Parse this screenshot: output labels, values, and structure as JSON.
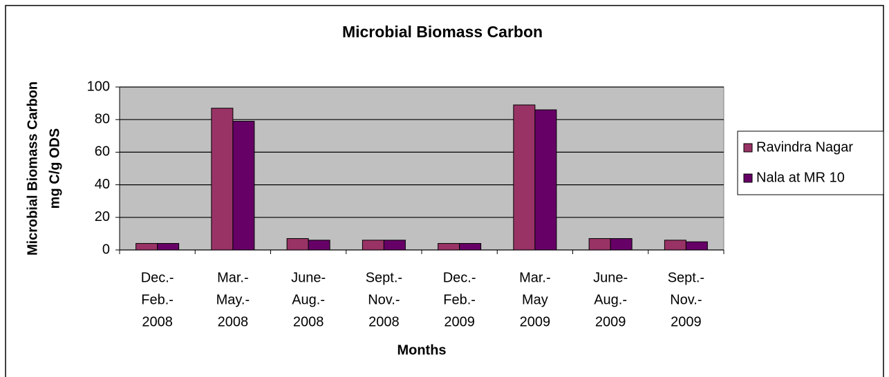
{
  "chart_data": {
    "type": "bar",
    "title": "Microbial Biomass Carbon",
    "xlabel": "Months",
    "ylabel": [
      "Microbial Biomass Carbon",
      "mg C/g ODS"
    ],
    "categories": [
      [
        "Dec.-",
        "Feb.-",
        "2008"
      ],
      [
        "Mar.-",
        "May.-",
        "2008"
      ],
      [
        "June-",
        "Aug.-",
        "2008"
      ],
      [
        "Sept.-",
        "Nov.-",
        "2008"
      ],
      [
        "Dec.-",
        "Feb.-",
        "2009"
      ],
      [
        "Mar.-",
        "May",
        "2009"
      ],
      [
        "June-",
        "Aug.-",
        "2009"
      ],
      [
        "Sept.-",
        "Nov.-",
        "2009"
      ]
    ],
    "series": [
      {
        "name": "Ravindra Nagar",
        "color": "#993366",
        "values": [
          4,
          87,
          7,
          6,
          4,
          89,
          7,
          6
        ]
      },
      {
        "name": "Nala at MR 10",
        "color": "#660066",
        "values": [
          4,
          79,
          6,
          6,
          4,
          86,
          7,
          5
        ]
      }
    ],
    "ylim": [
      0,
      100
    ],
    "yticks": [
      0,
      20,
      40,
      60,
      80,
      100
    ],
    "grid": true,
    "legend": "right"
  }
}
